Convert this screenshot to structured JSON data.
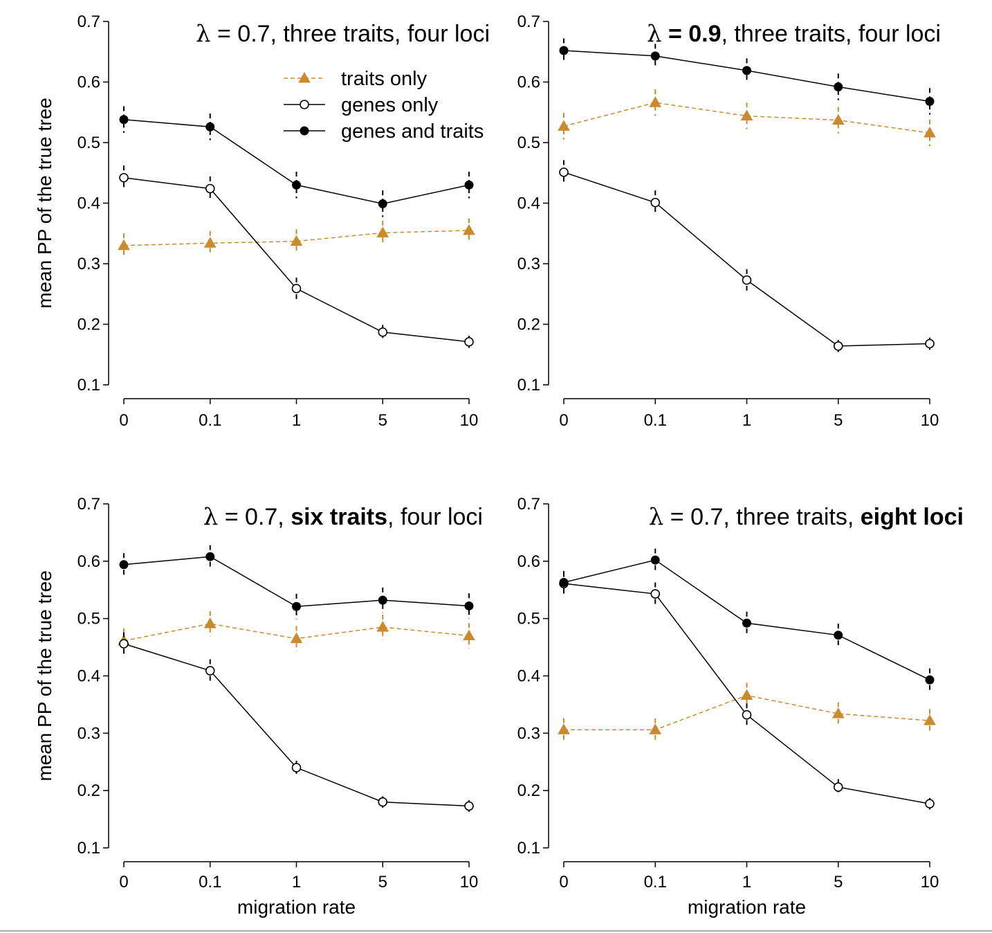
{
  "colors": {
    "traits_only": "#cc8a2e",
    "genes_only": "#000000",
    "genes_and_traits": "#000000",
    "axis": "#000000"
  },
  "legend": {
    "items": [
      {
        "key": "traits_only",
        "label": "traits only",
        "marker": "triangle",
        "dash": true
      },
      {
        "key": "genes_only",
        "label": "genes only",
        "marker": "open-circle",
        "dash": false
      },
      {
        "key": "genes_and_traits",
        "label": "genes and traits",
        "marker": "filled-circle",
        "dash": false
      }
    ]
  },
  "chart_data": [
    {
      "type": "line",
      "title_parts": [
        {
          "text": "λ",
          "bold": false,
          "symbol": true
        },
        {
          "text": " = 0.7, three traits, four loci",
          "bold": false
        }
      ],
      "xlabel": "",
      "ylabel": "mean PP of the true tree",
      "categories": [
        "0",
        "0.1",
        "1",
        "5",
        "10"
      ],
      "yticks": [
        "0.1",
        "0.2",
        "0.3",
        "0.4",
        "0.5",
        "0.6",
        "0.7"
      ],
      "ylim": [
        0.1,
        0.7
      ],
      "show_legend": true,
      "series": [
        {
          "key": "genes_and_traits",
          "name": "genes and traits",
          "values": [
            0.538,
            0.526,
            0.43,
            0.399,
            0.43
          ],
          "err": [
            0.022,
            0.022,
            0.022,
            0.022,
            0.022
          ]
        },
        {
          "key": "genes_only",
          "name": "genes only",
          "values": [
            0.442,
            0.424,
            0.259,
            0.187,
            0.171
          ],
          "err": [
            0.02,
            0.02,
            0.018,
            0.012,
            0.01
          ]
        },
        {
          "key": "traits_only",
          "name": "traits only",
          "values": [
            0.33,
            0.334,
            0.337,
            0.351,
            0.355
          ],
          "err": [
            0.02,
            0.02,
            0.02,
            0.02,
            0.02
          ]
        }
      ]
    },
    {
      "type": "line",
      "title_parts": [
        {
          "text": "λ",
          "bold": false,
          "symbol": true
        },
        {
          "text": " = 0.9",
          "bold": true
        },
        {
          "text": ", three traits, four loci",
          "bold": false
        }
      ],
      "xlabel": "",
      "ylabel": "",
      "categories": [
        "0",
        "0.1",
        "1",
        "5",
        "10"
      ],
      "yticks": [
        "0.1",
        "0.2",
        "0.3",
        "0.4",
        "0.5",
        "0.6",
        "0.7"
      ],
      "ylim": [
        0.1,
        0.7
      ],
      "show_legend": false,
      "series": [
        {
          "key": "genes_and_traits",
          "name": "genes and traits",
          "values": [
            0.652,
            0.643,
            0.619,
            0.592,
            0.568
          ],
          "err": [
            0.02,
            0.02,
            0.02,
            0.022,
            0.022
          ]
        },
        {
          "key": "genes_only",
          "name": "genes only",
          "values": [
            0.451,
            0.401,
            0.273,
            0.164,
            0.168
          ],
          "err": [
            0.02,
            0.02,
            0.018,
            0.01,
            0.01
          ]
        },
        {
          "key": "traits_only",
          "name": "traits only",
          "values": [
            0.527,
            0.566,
            0.544,
            0.537,
            0.516
          ],
          "err": [
            0.022,
            0.022,
            0.022,
            0.022,
            0.022
          ]
        }
      ]
    },
    {
      "type": "line",
      "title_parts": [
        {
          "text": "λ",
          "bold": false,
          "symbol": true
        },
        {
          "text": " = 0.7, ",
          "bold": false
        },
        {
          "text": "six traits",
          "bold": true
        },
        {
          "text": ", four loci",
          "bold": false
        }
      ],
      "xlabel": "migration rate",
      "ylabel": "mean PP of the true tree",
      "categories": [
        "0",
        "0.1",
        "1",
        "5",
        "10"
      ],
      "yticks": [
        "0.1",
        "0.2",
        "0.3",
        "0.4",
        "0.5",
        "0.6",
        "0.7"
      ],
      "ylim": [
        0.1,
        0.7
      ],
      "show_legend": false,
      "series": [
        {
          "key": "genes_and_traits",
          "name": "genes and traits",
          "values": [
            0.594,
            0.608,
            0.521,
            0.532,
            0.522
          ],
          "err": [
            0.02,
            0.02,
            0.022,
            0.022,
            0.022
          ]
        },
        {
          "key": "genes_only",
          "name": "genes only",
          "values": [
            0.456,
            0.409,
            0.24,
            0.18,
            0.173
          ],
          "err": [
            0.02,
            0.02,
            0.012,
            0.01,
            0.01
          ]
        },
        {
          "key": "traits_only",
          "name": "traits only",
          "values": [
            0.461,
            0.491,
            0.465,
            0.485,
            0.47
          ],
          "err": [
            0.022,
            0.022,
            0.022,
            0.022,
            0.022
          ]
        }
      ]
    },
    {
      "type": "line",
      "title_parts": [
        {
          "text": "λ",
          "bold": false,
          "symbol": true
        },
        {
          "text": " = 0.7, three traits, ",
          "bold": false
        },
        {
          "text": "eight loci",
          "bold": true
        }
      ],
      "xlabel": "migration rate",
      "ylabel": "",
      "categories": [
        "0",
        "0.1",
        "1",
        "5",
        "10"
      ],
      "yticks": [
        "0.1",
        "0.2",
        "0.3",
        "0.4",
        "0.5",
        "0.6",
        "0.7"
      ],
      "ylim": [
        0.1,
        0.7
      ],
      "show_legend": false,
      "series": [
        {
          "key": "genes_and_traits",
          "name": "genes and traits",
          "values": [
            0.563,
            0.602,
            0.492,
            0.471,
            0.393
          ],
          "err": [
            0.02,
            0.02,
            0.02,
            0.02,
            0.02
          ]
        },
        {
          "key": "genes_only",
          "name": "genes only",
          "values": [
            0.561,
            0.543,
            0.332,
            0.206,
            0.177
          ],
          "err": [
            0.02,
            0.02,
            0.02,
            0.014,
            0.01
          ]
        },
        {
          "key": "traits_only",
          "name": "traits only",
          "values": [
            0.306,
            0.306,
            0.366,
            0.334,
            0.322
          ],
          "err": [
            0.02,
            0.02,
            0.022,
            0.02,
            0.02
          ]
        }
      ]
    }
  ]
}
